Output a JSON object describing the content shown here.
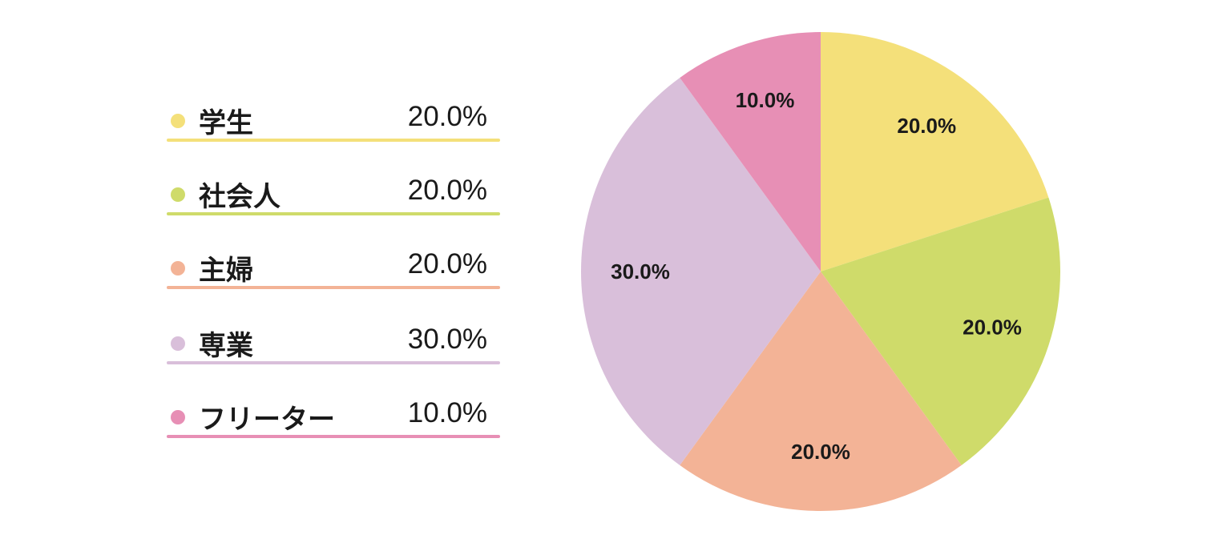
{
  "chart_data": {
    "type": "pie",
    "categories": [
      "学生",
      "社会人",
      "主婦",
      "専業",
      "フリーター"
    ],
    "values": [
      20.0,
      20.0,
      20.0,
      30.0,
      10.0
    ],
    "value_labels": [
      "20.0%",
      "20.0%",
      "20.0%",
      "30.0%",
      "10.0%"
    ],
    "colors": [
      "#f4e07a",
      "#cfdb6a",
      "#f3b396",
      "#d9bfda",
      "#e78fb5"
    ],
    "start": "12 o'clock",
    "direction": "clockwise",
    "legend_placement": "left"
  }
}
